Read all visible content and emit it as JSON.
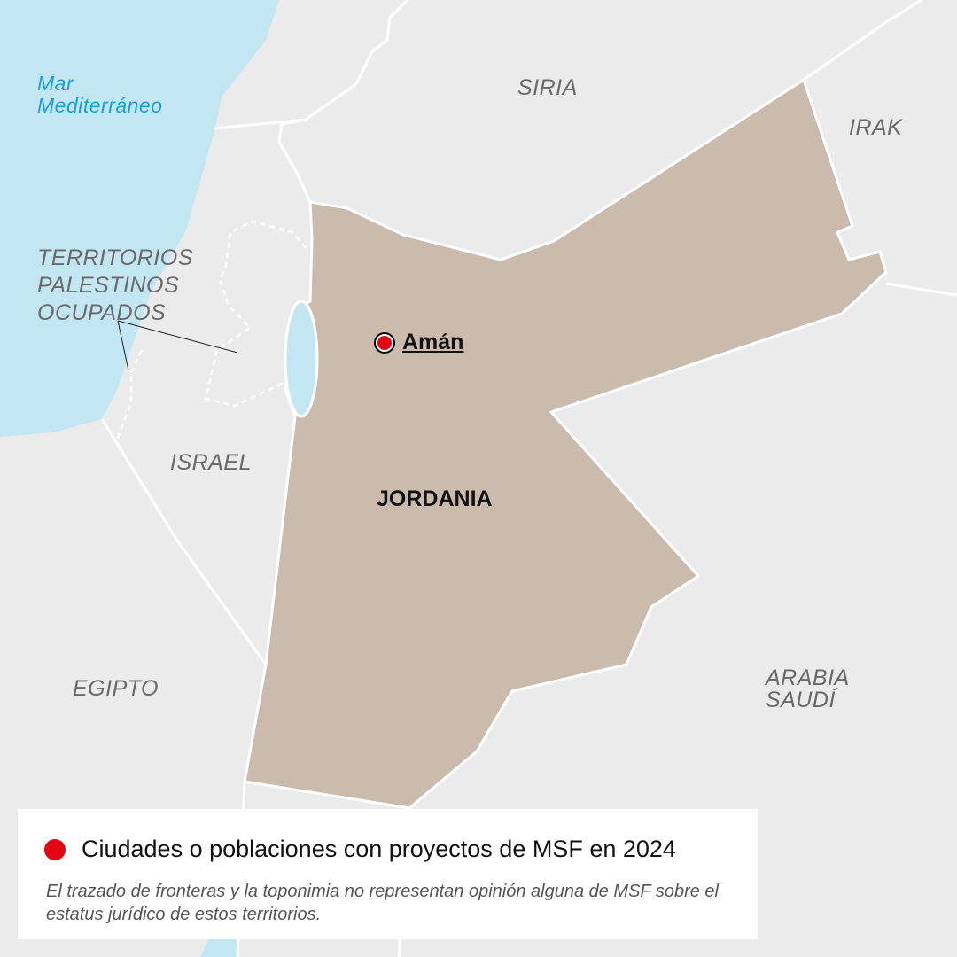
{
  "map": {
    "colors": {
      "land": "#ebebeb",
      "sea": "#c3e6f3",
      "highlight": "#cbbbac",
      "marker": "#e30613",
      "border": "#ffffff"
    },
    "labels": {
      "sea": "Mar\nMediterráneo",
      "syria": "SIRIA",
      "iraq": "IRAK",
      "territories": "TERRITORIOS\nPALESTINOS\nOCUPADOS",
      "israel": "ISRAEL",
      "egypt": "EGIPTO",
      "saudi": "ARABIA\nSAUDÍ",
      "jordan": "JORDANIA"
    },
    "cities": [
      {
        "name": "Amán",
        "msf_project": true
      }
    ]
  },
  "legend": {
    "marker_label": "Ciudades o poblaciones con proyectos de MSF en 2024",
    "note": "El trazado de fronteras y la toponimia no representan opinión alguna de MSF sobre el estatus jurídico de estos territorios."
  }
}
